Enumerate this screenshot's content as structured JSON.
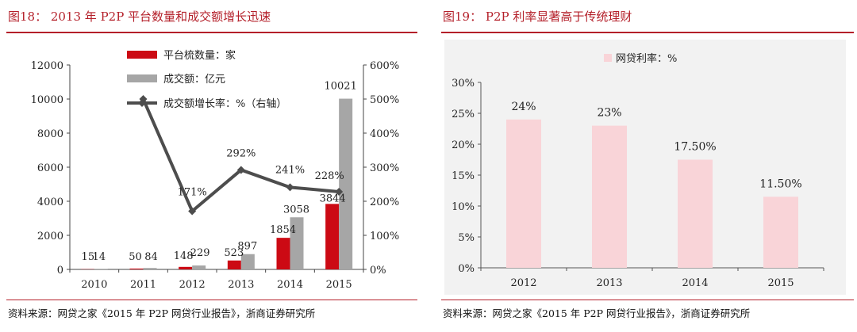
{
  "left": {
    "title": "图18： 2013 年 P2P 平台数量和成交额增长迅速",
    "source": "资料来源：网贷之家《2015 年 P2P 网贷行业报告》，浙商证券研究所"
  },
  "right": {
    "title": "图19： P2P 利率显著高于传统理财",
    "source": "资料来源：网贷之家《2015 年 P2P 网贷行业报告》，浙商证券研究所"
  },
  "colors": {
    "accent": "#b4202a",
    "bar_red": "#cc0a14",
    "bar_gray": "#a6a6a6",
    "line": "#4d4d4d",
    "bar_pink": "#f9d4d8"
  },
  "chart_data": [
    {
      "type": "bar",
      "categories": [
        "2010",
        "2011",
        "2012",
        "2013",
        "2014",
        "2015"
      ],
      "series": [
        {
          "name": "平台梳数量：家",
          "kind": "bar",
          "axis": "left",
          "values": [
            15,
            50,
            148,
            523,
            1854,
            3844
          ],
          "labels": [
            "15",
            "50",
            "148",
            "523",
            "1854",
            "3844"
          ]
        },
        {
          "name": "成交额：亿元",
          "kind": "bar",
          "axis": "left",
          "values": [
            14,
            84,
            229,
            897,
            3058,
            10021
          ],
          "labels": [
            "14",
            "84",
            "229",
            "897",
            "3058",
            "10021"
          ]
        },
        {
          "name": "成交额增长率：%（右轴）",
          "kind": "line",
          "axis": "right",
          "values": [
            null,
            500,
            171,
            292,
            241,
            228
          ],
          "labels": [
            "",
            "",
            "171%",
            "292%",
            "241%",
            "228%"
          ]
        }
      ],
      "left_ticks": [
        "0",
        "2000",
        "4000",
        "6000",
        "8000",
        "10000",
        "12000"
      ],
      "right_ticks": [
        "0%",
        "100%",
        "200%",
        "300%",
        "400%",
        "500%",
        "600%"
      ],
      "ylim": [
        0,
        12000
      ],
      "ylim_right": [
        0,
        600
      ],
      "legend_position": "top-left"
    },
    {
      "type": "bar",
      "categories": [
        "2012",
        "2013",
        "2014",
        "2015"
      ],
      "series": [
        {
          "name": "网贷利率：%",
          "values": [
            24,
            23,
            17.5,
            11.5
          ],
          "labels": [
            "24%",
            "23%",
            "17.50%",
            "11.50%"
          ]
        }
      ],
      "y_ticks": [
        "0%",
        "5%",
        "10%",
        "15%",
        "20%",
        "25%",
        "30%"
      ],
      "ylim": [
        0,
        30
      ],
      "legend_position": "top"
    }
  ]
}
